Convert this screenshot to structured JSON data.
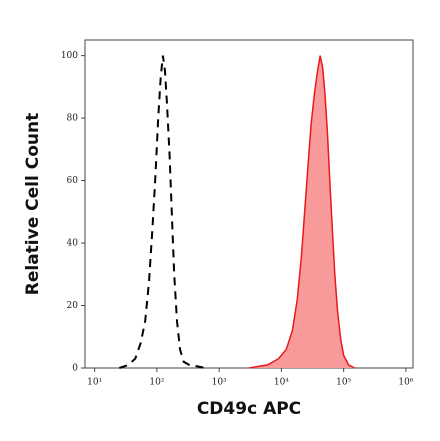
{
  "chart_data": {
    "type": "line",
    "xlabel": "CD49c APC",
    "ylabel": "Relative Cell Count",
    "xscale": "log",
    "xlim": [
      7,
      1300000
    ],
    "ylim": [
      0,
      105
    ],
    "xticks": [
      {
        "value": 10,
        "label": "10¹"
      },
      {
        "value": 100,
        "label": "10²"
      },
      {
        "value": 1000,
        "label": "10³"
      },
      {
        "value": 10000,
        "label": "10⁴"
      },
      {
        "value": 100000,
        "label": "10⁵"
      },
      {
        "value": 1000000,
        "label": "10⁶"
      }
    ],
    "yticks": [
      0,
      20,
      40,
      60,
      80,
      100
    ],
    "series": [
      {
        "color": "#000000",
        "linestyle": "dashed",
        "fill": false,
        "x": [
          25,
          35,
          45,
          55,
          65,
          75,
          85,
          95,
          105,
          115,
          125,
          135,
          145,
          160,
          175,
          190,
          210,
          235,
          270,
          330,
          450,
          600
        ],
        "values": [
          0,
          1,
          3,
          8,
          15,
          28,
          45,
          62,
          80,
          93,
          100,
          95,
          85,
          68,
          48,
          30,
          15,
          6,
          2,
          1,
          0.5,
          0
        ]
      },
      {
        "color": "#e8191c",
        "linestyle": "solid",
        "fill": true,
        "fill_color": "#f99a9a",
        "x": [
          3000,
          6000,
          9000,
          12000,
          15000,
          18000,
          21000,
          24000,
          27000,
          30000,
          34000,
          38000,
          42000,
          46000,
          50000,
          55000,
          60000,
          66000,
          72000,
          80000,
          90000,
          100000,
          120000,
          150000
        ],
        "values": [
          0,
          1,
          3,
          6,
          12,
          22,
          36,
          52,
          66,
          78,
          88,
          95,
          100,
          96,
          88,
          75,
          60,
          44,
          30,
          18,
          9,
          4,
          1,
          0
        ]
      }
    ]
  }
}
